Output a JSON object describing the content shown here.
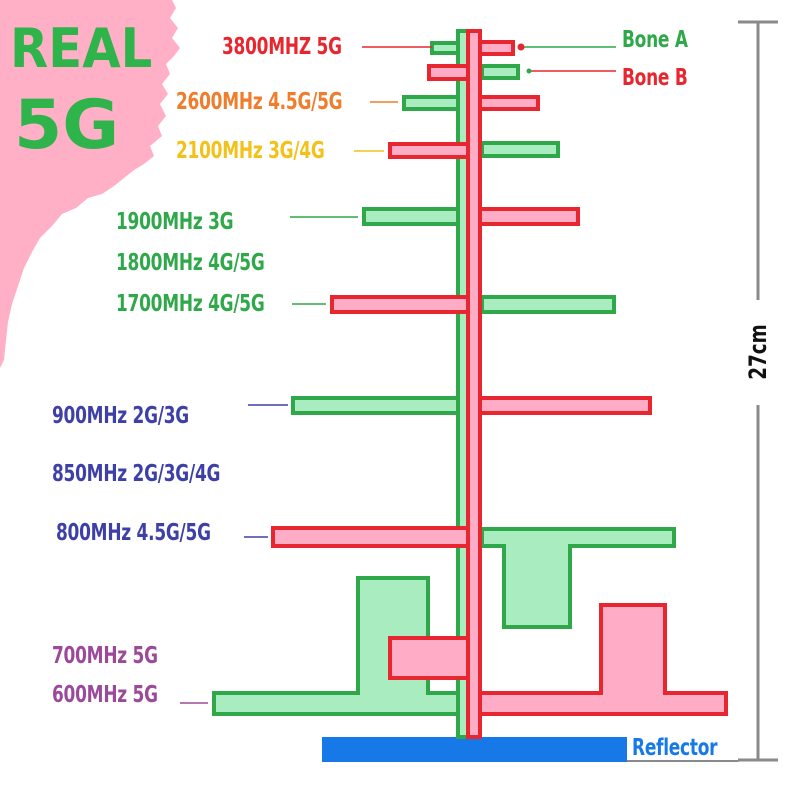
{
  "title": {
    "line1": "REAL",
    "line2": "5G"
  },
  "bands": [
    {
      "label": "3800MHZ 5G",
      "color": "#e8262f"
    },
    {
      "label": "2600MHz 4.5G/5G",
      "color": "#ef7d2b"
    },
    {
      "label": "2100MHz 3G/4G",
      "color": "#f2c21b"
    },
    {
      "label": "1900MHz 3G",
      "color": "#2fa84a"
    },
    {
      "label": "1800MHz 4G/5G",
      "color": "#2fa84a"
    },
    {
      "label": "1700MHz 4G/5G",
      "color": "#2fa84a"
    },
    {
      "label": "900MHz 2G/3G",
      "color": "#3e40a8"
    },
    {
      "label": "850MHz 2G/3G/4G",
      "color": "#3e40a8"
    },
    {
      "label": "800MHz 4.5G/5G",
      "color": "#3e40a8"
    },
    {
      "label": "700MHz 5G",
      "color": "#9b4a9a"
    },
    {
      "label": "600MHz 5G",
      "color": "#9b4a9a"
    }
  ],
  "legend": {
    "bone_a": {
      "label": "Bone A",
      "color": "#2fa84a"
    },
    "bone_b": {
      "label": "Bone B",
      "color": "#e8262f"
    }
  },
  "reflector": {
    "label": "Reflector",
    "color": "#1779e8"
  },
  "dimension": {
    "label": "27cm"
  },
  "colors": {
    "bone_a_fill": "#a8ecbf",
    "bone_a_stroke": "#2fa84a",
    "bone_b_fill": "#ffadc6",
    "bone_b_stroke": "#e8262f",
    "corner_pink": "#ffb0c6",
    "title_green": "#2fb34b"
  }
}
